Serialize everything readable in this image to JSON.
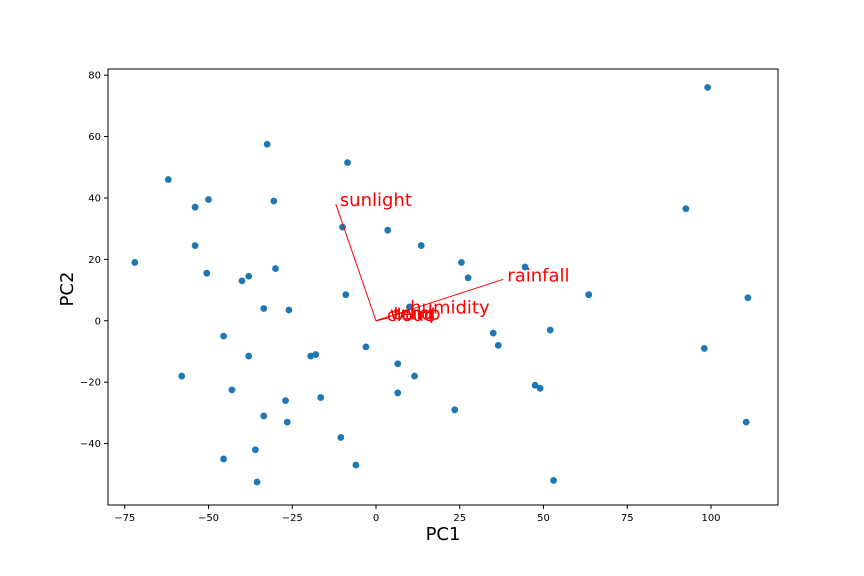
{
  "chart_data": {
    "type": "scatter",
    "title": "",
    "xlabel": "PC1",
    "ylabel": "PC2",
    "xlim": [
      -80,
      120
    ],
    "ylim": [
      -60,
      82
    ],
    "grid": false,
    "x_ticks": [
      -75,
      -50,
      -25,
      0,
      25,
      50,
      75,
      100
    ],
    "y_ticks": [
      -40,
      -20,
      0,
      20,
      40,
      60,
      80
    ],
    "point_color": "#1f77b4",
    "vector_color": "#ff0000",
    "points": [
      [
        -72,
        19
      ],
      [
        -62,
        46
      ],
      [
        -58,
        -18
      ],
      [
        -54,
        37
      ],
      [
        -54,
        24.5
      ],
      [
        -50,
        39.5
      ],
      [
        -50.5,
        15.5
      ],
      [
        -45.5,
        -5
      ],
      [
        -45.5,
        -45
      ],
      [
        -43,
        -22.5
      ],
      [
        -40,
        13
      ],
      [
        -38,
        14.5
      ],
      [
        -38,
        -11.5
      ],
      [
        -36,
        -42
      ],
      [
        -35.5,
        -52.5
      ],
      [
        -33.5,
        4
      ],
      [
        -33.5,
        -31
      ],
      [
        -32.5,
        57.5
      ],
      [
        -30.5,
        39
      ],
      [
        -30,
        17
      ],
      [
        -27,
        -26
      ],
      [
        -26.5,
        -33
      ],
      [
        -26,
        3.5
      ],
      [
        -19.5,
        -11.5
      ],
      [
        -18,
        -11
      ],
      [
        -16.5,
        -25
      ],
      [
        -10.5,
        -38
      ],
      [
        -10,
        30.5
      ],
      [
        -9,
        8.5
      ],
      [
        -8.5,
        51.5
      ],
      [
        -6,
        -47
      ],
      [
        -3,
        -8.5
      ],
      [
        3.5,
        29.5
      ],
      [
        6.5,
        -14
      ],
      [
        6.5,
        -23.5
      ],
      [
        10,
        4.5
      ],
      [
        11.5,
        -18
      ],
      [
        13.5,
        24.5
      ],
      [
        23.5,
        -29
      ],
      [
        25.5,
        19
      ],
      [
        27.5,
        14
      ],
      [
        35,
        -4
      ],
      [
        36.5,
        -8
      ],
      [
        44.5,
        17.5
      ],
      [
        47.5,
        -21
      ],
      [
        49,
        -22
      ],
      [
        52,
        -3
      ],
      [
        53,
        -52
      ],
      [
        63.5,
        8.5
      ],
      [
        92.5,
        36.5
      ],
      [
        98,
        -9
      ],
      [
        99,
        76
      ],
      [
        110.5,
        -33
      ],
      [
        111,
        7.5
      ]
    ],
    "vectors": [
      {
        "label": "sunlight",
        "x": -12,
        "y": 38
      },
      {
        "label": "rainfall",
        "x": 38,
        "y": 13.5
      },
      {
        "label": "humidity",
        "x": 9,
        "y": 3
      },
      {
        "label": "wind",
        "x": 3,
        "y": 1
      },
      {
        "label": "temp",
        "x": 4,
        "y": 1
      },
      {
        "label": "cloud",
        "x": 2,
        "y": 0.5
      }
    ]
  }
}
